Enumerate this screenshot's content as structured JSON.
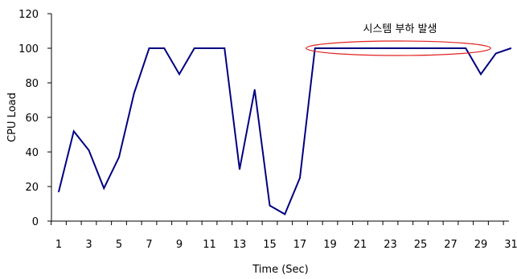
{
  "chart_data": {
    "type": "line",
    "title": "",
    "xlabel": "Time (Sec)",
    "ylabel": "CPU Load",
    "ylim": [
      0,
      120
    ],
    "yticks": [
      0,
      20,
      40,
      60,
      80,
      100,
      120
    ],
    "xticks": [
      1,
      3,
      5,
      7,
      9,
      11,
      13,
      15,
      17,
      19,
      21,
      23,
      25,
      27,
      29,
      31
    ],
    "grid": false,
    "legend": "none",
    "series": [
      {
        "color": "#000080",
        "x": [
          1,
          2,
          3,
          4,
          5,
          6,
          7,
          8,
          9,
          10,
          11,
          12,
          13,
          14,
          15,
          16,
          17,
          18,
          19,
          20,
          21,
          22,
          23,
          24,
          25,
          26,
          27,
          28,
          29,
          30,
          31
        ],
        "values": [
          17,
          52,
          41,
          19,
          37,
          74,
          100,
          100,
          85,
          100,
          100,
          100,
          30,
          76,
          9,
          4,
          25,
          100,
          100,
          100,
          100,
          100,
          100,
          100,
          100,
          100,
          100,
          100,
          85,
          97,
          100
        ]
      }
    ],
    "annotations": [
      {
        "text": "시스템 부하 발생",
        "x_from": 18,
        "x_to": 28,
        "y": 100,
        "ellipse_color": "#e02020"
      }
    ]
  }
}
